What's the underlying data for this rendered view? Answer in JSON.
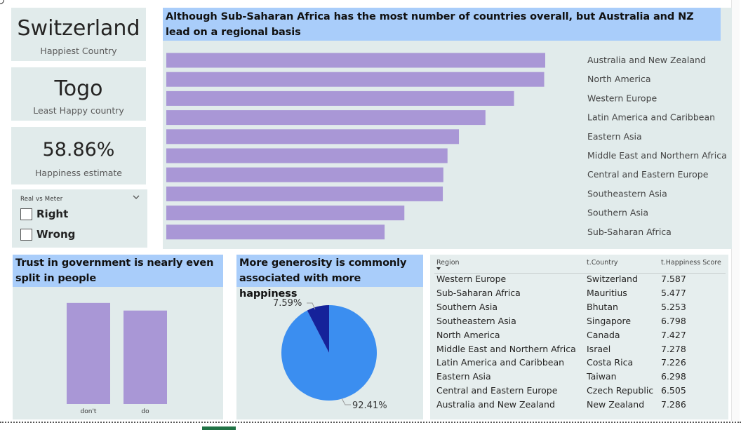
{
  "kpis": [
    {
      "value": "Switzerland",
      "label": "Happiest Country"
    },
    {
      "value": "Togo",
      "label": "Least Happy country"
    },
    {
      "value": "58.86%",
      "label": "Happiness estimate"
    }
  ],
  "slicer": {
    "title": "Real vs Meter",
    "items": [
      "Right",
      "Wrong"
    ]
  },
  "colors": {
    "bar": "#a997d6",
    "panel": "#e1ebeb",
    "title_bar": "#a9cdfa",
    "pie_main": "#3b8ef0",
    "pie_small": "#15229a"
  },
  "region_chart": {
    "title": "Although Sub-Saharan Africa has the most number of countries overall, but Australia and NZ lead on a regional basis"
  },
  "trust_chart": {
    "title": "Trust in government is nearly even split in people"
  },
  "pie_chart": {
    "title": "More generosity is commonly associated with more happiness"
  },
  "chart_data": [
    {
      "type": "bar",
      "orientation": "horizontal",
      "categories": [
        "Australia and New Zealand",
        "North America",
        "Western Europe",
        "Latin America and Caribbean",
        "Eastern Asia",
        "Middle East and Northern Africa",
        "Central and Eastern Europe",
        "Southeastern Asia",
        "Southern Asia",
        "Sub-Saharan Africa"
      ],
      "values": [
        7.29,
        7.27,
        6.69,
        6.14,
        5.63,
        5.41,
        5.33,
        5.32,
        4.58,
        4.2
      ],
      "xlim": [
        0,
        7.29
      ]
    },
    {
      "type": "bar",
      "categories": [
        "don't",
        "do"
      ],
      "values": [
        53,
        49
      ],
      "ylim": [
        0,
        100
      ]
    },
    {
      "type": "pie",
      "slices": [
        {
          "value": 92.41,
          "label": "92.41%",
          "color": "#3b8ef0"
        },
        {
          "value": 7.59,
          "label": "7.59%",
          "color": "#15229a"
        }
      ]
    }
  ],
  "table": {
    "headers": [
      "Region",
      "t.Country",
      "t.Happiness Score"
    ],
    "rows": [
      [
        "Western Europe",
        "Switzerland",
        "7.587"
      ],
      [
        "Sub-Saharan Africa",
        "Mauritius",
        "5.477"
      ],
      [
        "Southern Asia",
        "Bhutan",
        "5.253"
      ],
      [
        "Southeastern Asia",
        "Singapore",
        "6.798"
      ],
      [
        "North America",
        "Canada",
        "7.427"
      ],
      [
        "Middle East and Northern Africa",
        "Israel",
        "7.278"
      ],
      [
        "Latin America and Caribbean",
        "Costa Rica",
        "7.226"
      ],
      [
        "Eastern Asia",
        "Taiwan",
        "6.298"
      ],
      [
        "Central and Eastern Europe",
        "Czech Republic",
        "6.505"
      ],
      [
        "Australia and New Zealand",
        "New Zealand",
        "7.286"
      ]
    ]
  }
}
